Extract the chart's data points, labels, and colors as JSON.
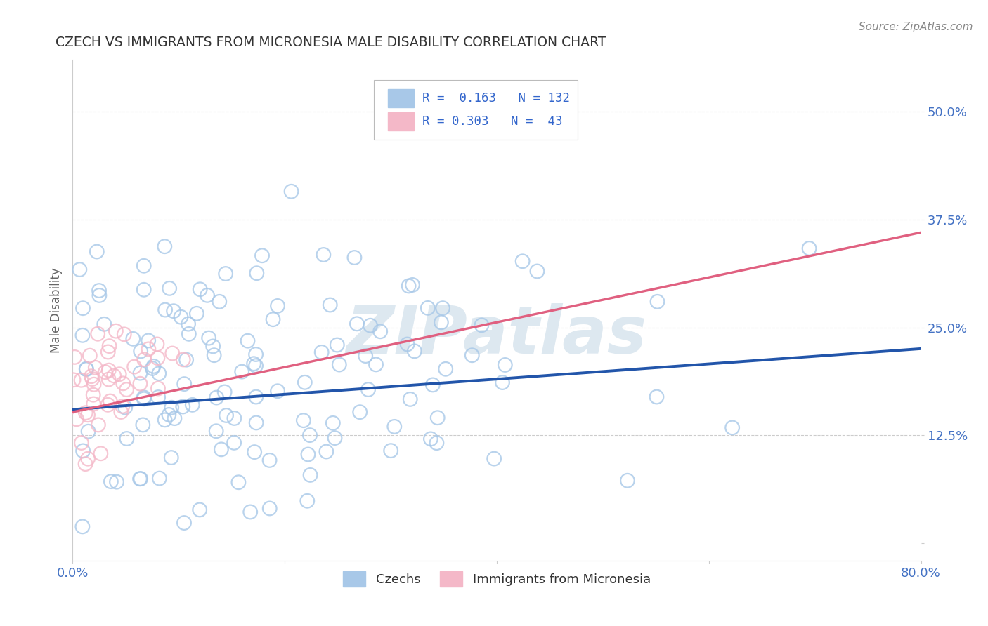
{
  "title": "CZECH VS IMMIGRANTS FROM MICRONESIA MALE DISABILITY CORRELATION CHART",
  "source": "Source: ZipAtlas.com",
  "ylabel": "Male Disability",
  "xlim": [
    0.0,
    0.8
  ],
  "ylim": [
    -0.02,
    0.56
  ],
  "yticks": [
    0.0,
    0.125,
    0.25,
    0.375,
    0.5
  ],
  "ytick_labels": [
    "",
    "12.5%",
    "25.0%",
    "37.5%",
    "50.0%"
  ],
  "xticks": [
    0.0,
    0.2,
    0.4,
    0.6,
    0.8
  ],
  "xtick_labels": [
    "0.0%",
    "",
    "",
    "",
    "80.0%"
  ],
  "legend1_label": "Czechs",
  "legend2_label": "Immigrants from Micronesia",
  "R_czech": 0.163,
  "N_czech": 132,
  "R_micro": 0.303,
  "N_micro": 43,
  "blue_scatter_color": "#a8c8e8",
  "pink_scatter_color": "#f4b8c8",
  "blue_line_color": "#2255aa",
  "pink_line_color": "#e06080",
  "pink_line_extend_color": "#d8a0b0",
  "title_color": "#333333",
  "axis_label_color": "#666666",
  "tick_color": "#4472C4",
  "grid_color": "#cccccc",
  "watermark_text": "ZIPatlas",
  "watermark_color": "#dde8f0",
  "background_color": "#ffffff",
  "legend_box_color": "#eeeeee",
  "legend_text_color": "#3366cc"
}
